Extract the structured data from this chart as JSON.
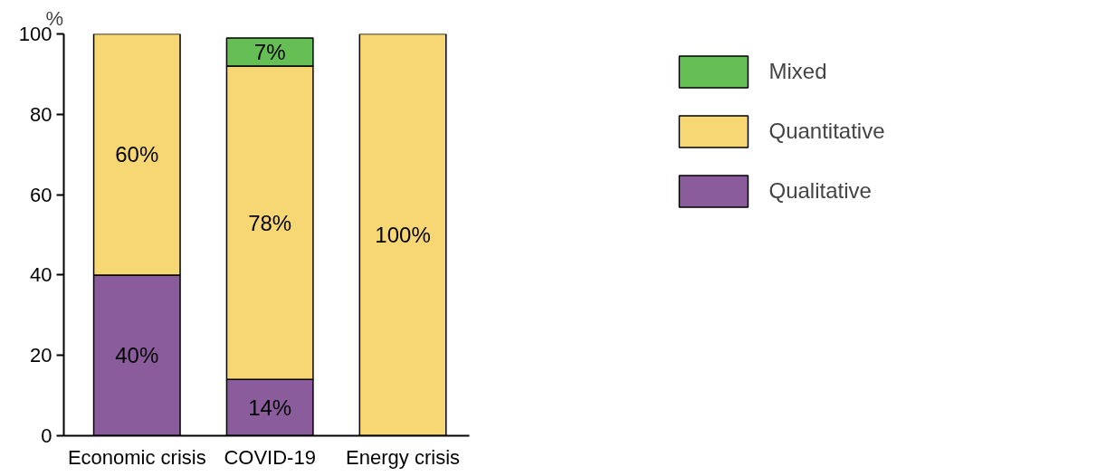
{
  "chart_data": {
    "type": "bar",
    "stacked": true,
    "ylabel": "%",
    "categories": [
      "Economic crisis",
      "COVID-19",
      "Energy crisis"
    ],
    "series": [
      {
        "name": "Qualitative",
        "color": "#8b5c9c",
        "values": [
          40,
          14,
          0
        ],
        "value_labels": [
          "40%",
          "14%",
          null
        ]
      },
      {
        "name": "Quantitative",
        "color": "#f7d774",
        "values": [
          60,
          78,
          100
        ],
        "value_labels": [
          "60%",
          "78%",
          "100%"
        ]
      },
      {
        "name": "Mixed",
        "color": "#66bf55",
        "values": [
          0,
          7,
          0
        ],
        "value_labels": [
          null,
          "7%",
          null
        ]
      }
    ],
    "ylim": [
      0,
      100
    ],
    "yticks": [
      0,
      20,
      40,
      60,
      80,
      100
    ],
    "grid": false,
    "legend": "top right"
  }
}
